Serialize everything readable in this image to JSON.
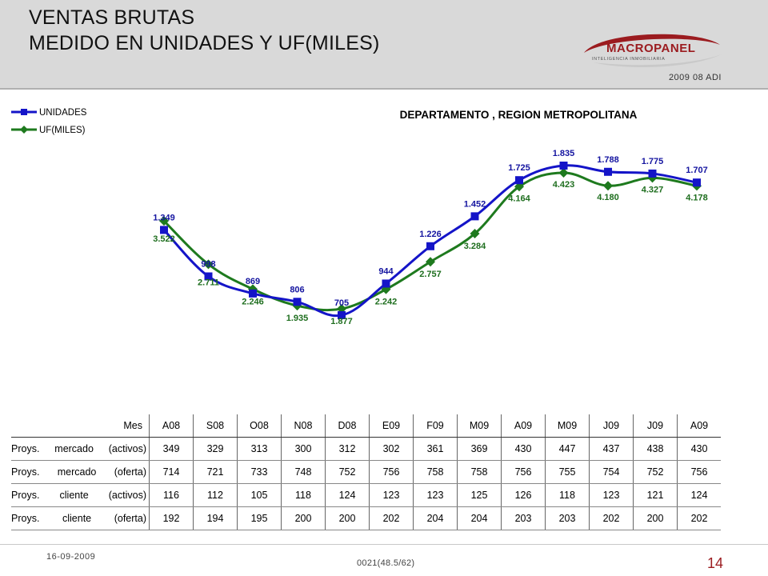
{
  "header": {
    "title_line1": "VENTAS BRUTAS",
    "title_line2": "MEDIDO EN UNIDADES Y UF(MILES)",
    "logo_text": "MACROPANEL",
    "logo_subtext": "INTELIGENCIA INMOBILIARIA",
    "report_code": "2009 08 ADI",
    "logo_color": "#9b1b1f"
  },
  "chart_data": {
    "type": "line",
    "title": "DEPARTAMENTO , REGION METROPOLITANA",
    "categories": [
      "A08",
      "S08",
      "O08",
      "N08",
      "D08",
      "E09",
      "F09",
      "M09",
      "A09",
      "M09",
      "J09",
      "J09",
      "A09"
    ],
    "series": [
      {
        "name": "UNIDADES",
        "color": "#1414c8",
        "marker": "square",
        "values": [
          1349,
          998,
          869,
          806,
          705,
          944,
          1226,
          1452,
          1725,
          1835,
          1788,
          1775,
          1707
        ],
        "labels": [
          "1.349",
          "998",
          "869",
          "806",
          "705",
          "944",
          "1.226",
          "1.452",
          "1.725",
          "1.835",
          "1.788",
          "1.775",
          "1.707"
        ]
      },
      {
        "name": "UF(MILES)",
        "color": "#1e7a1e",
        "marker": "diamond",
        "values": [
          3522,
          2711,
          2246,
          1935,
          1877,
          2242,
          2757,
          3284,
          4164,
          4423,
          4180,
          4327,
          4178
        ],
        "labels": [
          "3.522",
          "2.711",
          "2.246",
          "1.935",
          "1.877",
          "2.242",
          "2.757",
          "3.284",
          "4.164",
          "4.423",
          "4.180",
          "4.327",
          "4.178"
        ]
      }
    ],
    "legend_position": "top-left",
    "grid": false,
    "smoothed": true
  },
  "table": {
    "header_label": "Mes",
    "columns": [
      "A08",
      "S08",
      "O08",
      "N08",
      "D08",
      "E09",
      "F09",
      "M09",
      "A09",
      "M09",
      "J09",
      "J09",
      "A09"
    ],
    "rows": [
      {
        "label": [
          "Proys.",
          "mercado",
          "(activos)"
        ],
        "values": [
          "349",
          "329",
          "313",
          "300",
          "312",
          "302",
          "361",
          "369",
          "430",
          "447",
          "437",
          "438",
          "430"
        ]
      },
      {
        "label": [
          "Proys.",
          "mercado",
          "(oferta)"
        ],
        "values": [
          "714",
          "721",
          "733",
          "748",
          "752",
          "756",
          "758",
          "758",
          "756",
          "755",
          "754",
          "752",
          "756"
        ]
      },
      {
        "label": [
          "Proys.",
          "cliente",
          "(activos)"
        ],
        "values": [
          "116",
          "112",
          "105",
          "118",
          "124",
          "123",
          "123",
          "125",
          "126",
          "118",
          "123",
          "121",
          "124"
        ]
      },
      {
        "label": [
          "Proys.",
          "cliente",
          "(oferta)"
        ],
        "values": [
          "192",
          "194",
          "195",
          "200",
          "200",
          "202",
          "204",
          "204",
          "203",
          "203",
          "202",
          "200",
          "202"
        ]
      }
    ]
  },
  "footer": {
    "date": "16-09-2009",
    "code": "0021(48.5/62)",
    "page": "14"
  }
}
